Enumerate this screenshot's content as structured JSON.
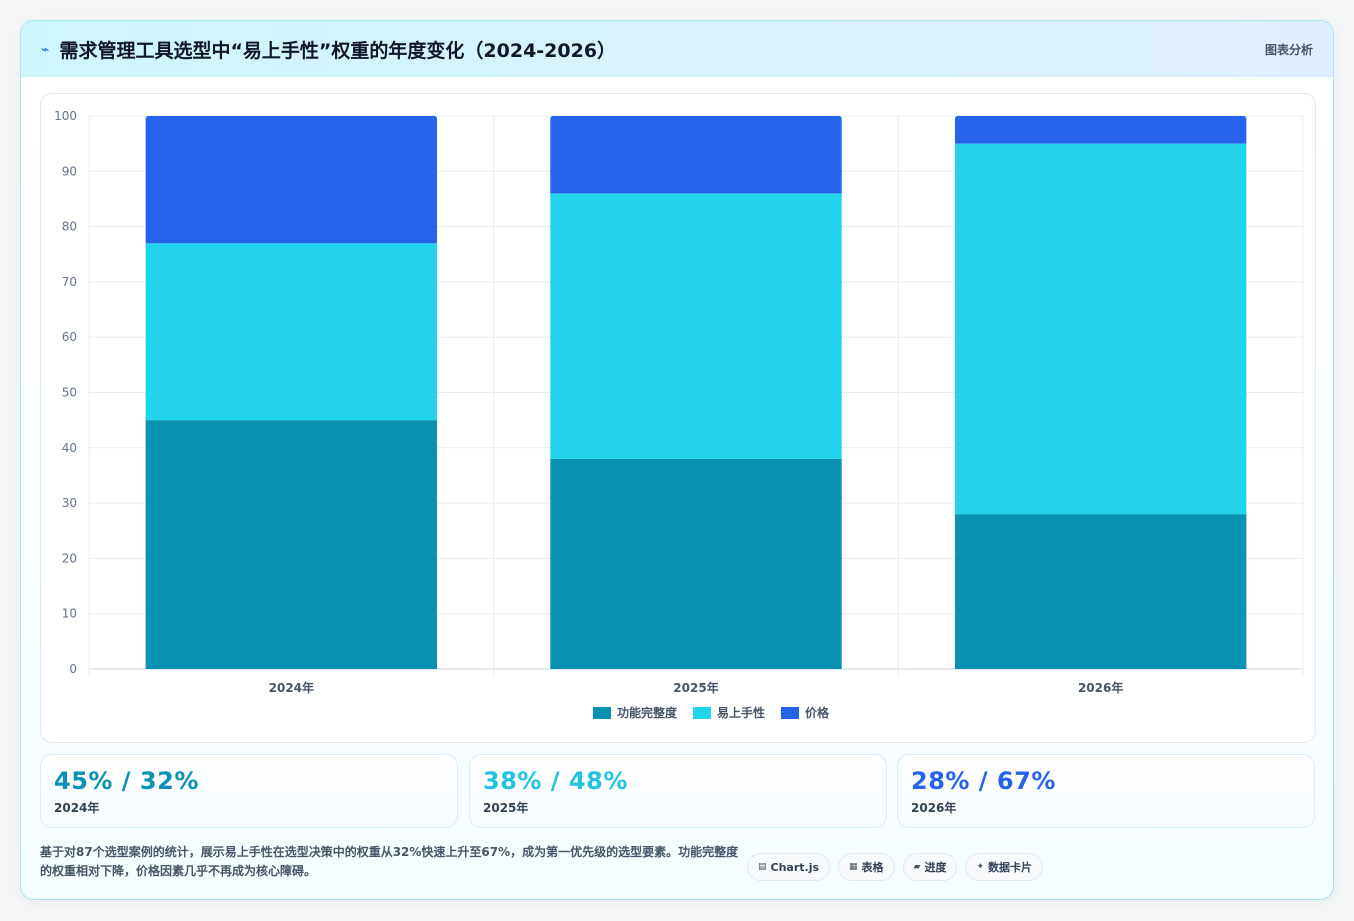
{
  "header": {
    "icon": "sparkle-icon",
    "title": "需求管理工具选型中“易上手性”权重的年度变化（2024-2026）",
    "tag": "图表分析"
  },
  "chart_data": {
    "type": "bar",
    "stacked": true,
    "categories": [
      "2024年",
      "2025年",
      "2026年"
    ],
    "series": [
      {
        "name": "功能完整度",
        "color": "#0891b2",
        "values": [
          45,
          38,
          28
        ]
      },
      {
        "name": "易上手性",
        "color": "#22d3ee",
        "values": [
          32,
          48,
          67
        ]
      },
      {
        "name": "价格",
        "color": "#2563eb",
        "values": [
          23,
          14,
          5
        ]
      }
    ],
    "ylim": [
      0,
      100
    ],
    "yticks": [
      0,
      10,
      20,
      30,
      40,
      50,
      60,
      70,
      80,
      90,
      100
    ],
    "grid": true,
    "legend": "bottom"
  },
  "stats": [
    {
      "value": "45% / 32%",
      "label": "2024年",
      "color": "#0891b2"
    },
    {
      "value": "38% / 48%",
      "label": "2025年",
      "color": "#22c3e0"
    },
    {
      "value": "28% / 67%",
      "label": "2026年",
      "color": "#2563eb"
    }
  ],
  "description": "基于对87个选型案例的统计，展示易上手性在选型决策中的权重从32%快速上升至67%，成为第一优先级的选型要素。功能完整度的权重相对下降，价格因素几乎不再成为核心障碍。",
  "chips": [
    {
      "icon": "chart-icon",
      "glyph": "▤",
      "label": "Chart.js"
    },
    {
      "icon": "table-icon",
      "glyph": "▦",
      "label": "表格"
    },
    {
      "icon": "progress-icon",
      "glyph": "▰",
      "label": "进度"
    },
    {
      "icon": "card-icon",
      "glyph": "✦",
      "label": "数据卡片"
    }
  ]
}
